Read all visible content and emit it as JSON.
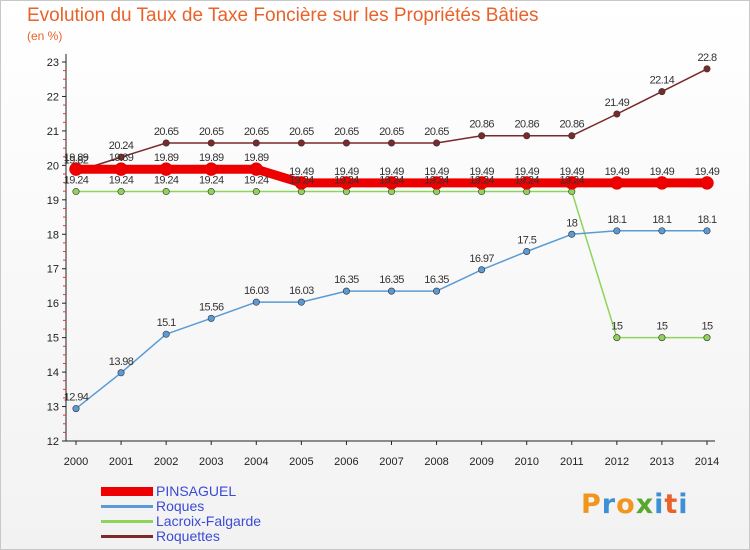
{
  "title": "Evolution du Taux de Taxe Foncière sur les Propriétés Bâties",
  "unit_label": "(en %)",
  "logo": {
    "letters": [
      "P",
      "r",
      "o",
      "x",
      "i",
      "t",
      "i"
    ],
    "colors": [
      "#f0961e",
      "#3d8fd6",
      "#f0961e",
      "#5aa72f",
      "#3d8fd6",
      "#e8622a",
      "#3d8fd6"
    ]
  },
  "chart_data": {
    "type": "line",
    "title": "Evolution du Taux de Taxe Foncière sur les Propriétés Bâties",
    "ylabel": "(en %)",
    "xlabel": "",
    "ylim": [
      12,
      23
    ],
    "yticks": [
      "12",
      "13",
      "14",
      "15",
      "16",
      "17",
      "18",
      "19",
      "20",
      "21",
      "22",
      "23"
    ],
    "categories": [
      "2000",
      "2001",
      "2002",
      "2003",
      "2004",
      "2005",
      "2006",
      "2007",
      "2008",
      "2009",
      "2010",
      "2011",
      "2012",
      "2013",
      "2014"
    ],
    "series": [
      {
        "name": "Roquettes",
        "color": "#7a2a2a",
        "values": [
          19.82,
          20.24,
          20.65,
          20.65,
          20.65,
          20.65,
          20.65,
          20.65,
          20.65,
          20.86,
          20.86,
          20.86,
          21.49,
          22.14,
          22.8
        ],
        "labels": [
          "19.82",
          "20.24",
          "20.65",
          "20.65",
          "20.65",
          "20.65",
          "20.65",
          "20.65",
          "20.65",
          "20.86",
          "20.86",
          "20.86",
          "21.49",
          "22.14",
          "22.8"
        ]
      },
      {
        "name": "Lacroix-Falgarde",
        "color": "#8fd45a",
        "values": [
          19.24,
          19.24,
          19.24,
          19.24,
          19.24,
          19.24,
          19.24,
          19.24,
          19.24,
          19.24,
          19.24,
          19.24,
          15,
          15,
          15
        ],
        "labels": [
          "19.24",
          "19.24",
          "19.24",
          "19.24",
          "19.24",
          "19.24",
          "19.24",
          "19.24",
          "19.24",
          "19.24",
          "19.24",
          "19.24",
          "15",
          "15",
          "15"
        ]
      },
      {
        "name": "Roques",
        "color": "#5b9bd5",
        "values": [
          12.94,
          13.98,
          15.1,
          15.56,
          16.03,
          16.03,
          16.35,
          16.35,
          16.35,
          16.97,
          17.5,
          18,
          18.1,
          18.1,
          18.1
        ],
        "labels": [
          "12.94",
          "13.98",
          "15.1",
          "15.56",
          "16.03",
          "16.03",
          "16.35",
          "16.35",
          "16.35",
          "16.97",
          "17.5",
          "18",
          "18.1",
          "18.1",
          "18.1"
        ]
      },
      {
        "name": "PINSAGUEL",
        "color": "#ee0000",
        "values": [
          19.89,
          19.89,
          19.89,
          19.89,
          19.89,
          19.49,
          19.49,
          19.49,
          19.49,
          19.49,
          19.49,
          19.49,
          19.49,
          19.49,
          19.49
        ],
        "labels": [
          "19.89",
          "19.89",
          "19.89",
          "19.89",
          "19.89",
          "19.49",
          "19.49",
          "19.49",
          "19.49",
          "19.49",
          "19.49",
          "19.49",
          "19.49",
          "19.49",
          "19.49"
        ]
      }
    ],
    "legend": [
      "PINSAGUEL",
      "Roques",
      "Lacroix-Falgarde",
      "Roquettes"
    ],
    "legend_position": "bottom-left",
    "grid": false
  }
}
